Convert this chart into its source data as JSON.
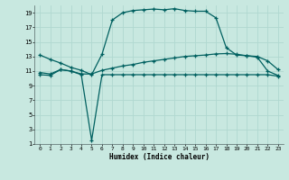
{
  "xlabel": "Humidex (Indice chaleur)",
  "bg_color": "#c8e8e0",
  "grid_color": "#b0d8d0",
  "line_color": "#006060",
  "xlim": [
    -0.5,
    23.5
  ],
  "ylim": [
    1,
    20
  ],
  "xticks": [
    0,
    1,
    2,
    3,
    4,
    5,
    6,
    7,
    8,
    9,
    10,
    11,
    12,
    13,
    14,
    15,
    16,
    17,
    18,
    19,
    20,
    21,
    22,
    23
  ],
  "yticks": [
    1,
    3,
    5,
    7,
    9,
    11,
    13,
    15,
    17,
    19
  ],
  "line1_x": [
    0,
    1,
    2,
    3,
    4,
    5,
    6,
    7,
    8,
    9,
    10,
    11,
    12,
    13,
    14,
    15,
    16,
    17,
    18,
    19,
    20,
    21,
    22,
    23
  ],
  "line1_y": [
    13.2,
    12.6,
    12.1,
    11.5,
    11.1,
    10.5,
    13.3,
    18.0,
    19.0,
    19.3,
    19.4,
    19.5,
    19.4,
    19.55,
    19.3,
    19.2,
    19.2,
    18.3,
    14.2,
    13.2,
    13.1,
    13.0,
    12.4,
    11.2
  ],
  "line2_x": [
    0,
    1,
    2,
    3,
    4,
    5,
    6,
    7,
    8,
    9,
    10,
    11,
    12,
    13,
    14,
    15,
    16,
    17,
    18,
    19,
    20,
    21,
    22,
    23
  ],
  "line2_y": [
    10.8,
    10.6,
    11.2,
    11.0,
    10.6,
    10.6,
    11.1,
    11.4,
    11.7,
    11.9,
    12.2,
    12.4,
    12.6,
    12.8,
    13.0,
    13.1,
    13.2,
    13.35,
    13.4,
    13.3,
    13.1,
    12.9,
    11.0,
    10.4
  ],
  "line3_x": [
    0,
    1,
    2,
    3,
    4,
    5,
    6,
    7,
    8,
    9,
    10,
    11,
    12,
    13,
    14,
    15,
    16,
    17,
    18,
    19,
    20,
    21,
    22,
    23
  ],
  "line3_y": [
    10.5,
    10.4,
    11.2,
    11.0,
    10.5,
    1.5,
    10.5,
    10.5,
    10.5,
    10.5,
    10.5,
    10.5,
    10.5,
    10.5,
    10.5,
    10.5,
    10.5,
    10.5,
    10.5,
    10.5,
    10.5,
    10.5,
    10.5,
    10.3
  ]
}
